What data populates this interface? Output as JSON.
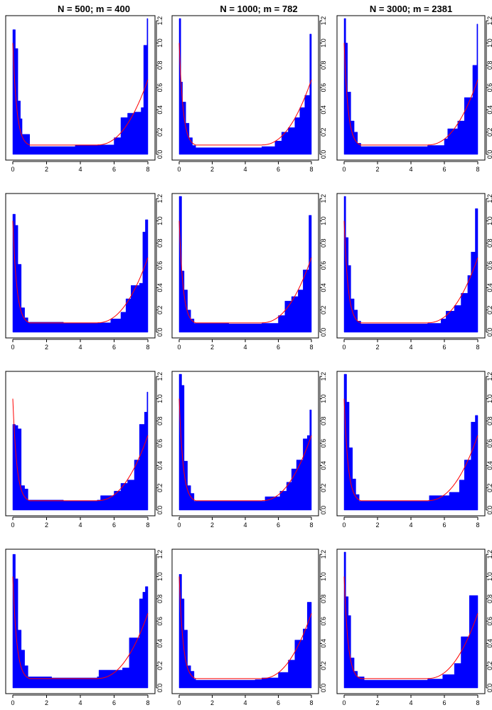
{
  "colors": {
    "hist": "#0000ff",
    "curve": "#ff0000",
    "axis": "#000000",
    "frame": "#000000"
  },
  "columns": [
    {
      "title": "N = 500; m = 400"
    },
    {
      "title": "N = 1000; m = 782"
    },
    {
      "title": "N = 3000; m = 2381"
    }
  ],
  "x_ticks": [
    0,
    2,
    4,
    6,
    8
  ],
  "y_ticks": [
    0.0,
    0.2,
    0.4,
    0.6,
    0.8,
    1.0,
    1.2
  ],
  "y_tick_labels": [
    "0.0",
    "0.2",
    "0.4",
    "0.6",
    "0.8",
    "1.0",
    "1.2"
  ],
  "x_tick_labels": [
    "0",
    "2",
    "4",
    "6",
    "8"
  ],
  "chart_data": [
    {
      "type": "area",
      "panel": "r1c1",
      "xlim": [
        0,
        8
      ],
      "ylim": [
        0,
        1.22
      ],
      "curve": "density",
      "steps": [
        [
          0,
          1.12
        ],
        [
          0.15,
          0.95
        ],
        [
          0.3,
          0.48
        ],
        [
          0.45,
          0.32
        ],
        [
          0.55,
          0.18
        ],
        [
          1.0,
          0.07
        ],
        [
          3.7,
          0.085
        ],
        [
          5.2,
          0.085
        ],
        [
          6.0,
          0.15
        ],
        [
          6.4,
          0.33
        ],
        [
          6.8,
          0.37
        ],
        [
          7.2,
          0.38
        ],
        [
          7.6,
          0.42
        ],
        [
          7.75,
          0.98
        ],
        [
          7.95,
          1.22
        ],
        [
          8.0,
          1.22
        ]
      ]
    },
    {
      "type": "area",
      "panel": "r1c2",
      "xlim": [
        0,
        8
      ],
      "ylim": [
        0,
        1.22
      ],
      "curve": "density",
      "steps": [
        [
          0,
          1.22
        ],
        [
          0.1,
          0.65
        ],
        [
          0.2,
          0.47
        ],
        [
          0.4,
          0.28
        ],
        [
          0.6,
          0.15
        ],
        [
          0.8,
          0.08
        ],
        [
          1.0,
          0.06
        ],
        [
          5.0,
          0.07
        ],
        [
          5.8,
          0.12
        ],
        [
          6.2,
          0.2
        ],
        [
          6.6,
          0.24
        ],
        [
          7.0,
          0.33
        ],
        [
          7.3,
          0.42
        ],
        [
          7.6,
          0.53
        ],
        [
          7.9,
          1.08
        ],
        [
          8.0,
          1.08
        ]
      ]
    },
    {
      "type": "area",
      "panel": "r1c3",
      "xlim": [
        0,
        8
      ],
      "ylim": [
        0,
        1.22
      ],
      "curve": "density",
      "steps": [
        [
          0,
          1.22
        ],
        [
          0.1,
          1.0
        ],
        [
          0.2,
          0.56
        ],
        [
          0.4,
          0.3
        ],
        [
          0.6,
          0.2
        ],
        [
          0.8,
          0.1
        ],
        [
          1.0,
          0.07
        ],
        [
          5.0,
          0.08
        ],
        [
          6.0,
          0.14
        ],
        [
          6.2,
          0.23
        ],
        [
          6.8,
          0.3
        ],
        [
          7.2,
          0.51
        ],
        [
          7.7,
          0.8
        ],
        [
          7.95,
          1.17
        ],
        [
          8.0,
          1.17
        ]
      ]
    },
    {
      "type": "area",
      "panel": "r2c1",
      "xlim": [
        0,
        8
      ],
      "ylim": [
        0,
        1.22
      ],
      "curve": "density",
      "steps": [
        [
          0,
          1.06
        ],
        [
          0.15,
          0.96
        ],
        [
          0.3,
          0.61
        ],
        [
          0.5,
          0.22
        ],
        [
          0.7,
          0.13
        ],
        [
          0.9,
          0.09
        ],
        [
          3.0,
          0.085
        ],
        [
          5.0,
          0.085
        ],
        [
          5.8,
          0.12
        ],
        [
          6.4,
          0.18
        ],
        [
          6.7,
          0.3
        ],
        [
          7.0,
          0.42
        ],
        [
          7.5,
          0.44
        ],
        [
          7.7,
          0.9
        ],
        [
          7.85,
          1.01
        ],
        [
          8.0,
          1.01
        ]
      ]
    },
    {
      "type": "area",
      "panel": "r2c2",
      "xlim": [
        0,
        8
      ],
      "ylim": [
        0,
        1.22
      ],
      "curve": "density",
      "steps": [
        [
          0,
          1.22
        ],
        [
          0.15,
          0.55
        ],
        [
          0.3,
          0.38
        ],
        [
          0.5,
          0.2
        ],
        [
          0.7,
          0.12
        ],
        [
          0.9,
          0.08
        ],
        [
          3.0,
          0.075
        ],
        [
          5.0,
          0.08
        ],
        [
          6.0,
          0.15
        ],
        [
          6.4,
          0.28
        ],
        [
          6.8,
          0.32
        ],
        [
          7.2,
          0.38
        ],
        [
          7.5,
          0.56
        ],
        [
          7.85,
          1.05
        ],
        [
          8.0,
          1.05
        ]
      ]
    },
    {
      "type": "area",
      "panel": "r2c3",
      "xlim": [
        0,
        8
      ],
      "ylim": [
        0,
        1.22
      ],
      "curve": "density",
      "steps": [
        [
          0,
          1.22
        ],
        [
          0.1,
          0.85
        ],
        [
          0.25,
          0.6
        ],
        [
          0.4,
          0.3
        ],
        [
          0.6,
          0.2
        ],
        [
          0.8,
          0.1
        ],
        [
          1.0,
          0.075
        ],
        [
          5.0,
          0.08
        ],
        [
          5.8,
          0.12
        ],
        [
          6.1,
          0.19
        ],
        [
          6.6,
          0.24
        ],
        [
          7.0,
          0.35
        ],
        [
          7.4,
          0.51
        ],
        [
          7.6,
          0.72
        ],
        [
          7.85,
          1.11
        ],
        [
          8.0,
          1.11
        ]
      ]
    },
    {
      "type": "area",
      "panel": "r3c1",
      "xlim": [
        0,
        8
      ],
      "ylim": [
        0,
        1.22
      ],
      "curve": "density",
      "steps": [
        [
          0,
          0.77
        ],
        [
          0.15,
          0.76
        ],
        [
          0.3,
          0.73
        ],
        [
          0.5,
          0.22
        ],
        [
          0.7,
          0.19
        ],
        [
          0.9,
          0.09
        ],
        [
          3.0,
          0.085
        ],
        [
          5.0,
          0.09
        ],
        [
          5.2,
          0.13
        ],
        [
          6.0,
          0.17
        ],
        [
          6.4,
          0.24
        ],
        [
          6.8,
          0.27
        ],
        [
          7.2,
          0.45
        ],
        [
          7.5,
          0.77
        ],
        [
          7.8,
          0.88
        ],
        [
          7.95,
          1.06
        ],
        [
          8.0,
          1.06
        ]
      ]
    },
    {
      "type": "area",
      "panel": "r3c2",
      "xlim": [
        0,
        8
      ],
      "ylim": [
        0,
        1.22
      ],
      "curve": "density",
      "steps": [
        [
          0,
          1.22
        ],
        [
          0.15,
          1.12
        ],
        [
          0.3,
          0.44
        ],
        [
          0.5,
          0.22
        ],
        [
          0.7,
          0.15
        ],
        [
          0.9,
          0.08
        ],
        [
          5.0,
          0.08
        ],
        [
          5.2,
          0.12
        ],
        [
          6.1,
          0.17
        ],
        [
          6.5,
          0.25
        ],
        [
          6.8,
          0.37
        ],
        [
          7.1,
          0.45
        ],
        [
          7.5,
          0.64
        ],
        [
          7.75,
          0.67
        ],
        [
          7.9,
          0.9
        ],
        [
          8.0,
          0.9
        ]
      ]
    },
    {
      "type": "area",
      "panel": "r3c3",
      "xlim": [
        0,
        8
      ],
      "ylim": [
        0,
        1.22
      ],
      "curve": "density",
      "steps": [
        [
          0,
          1.22
        ],
        [
          0.15,
          0.97
        ],
        [
          0.3,
          0.56
        ],
        [
          0.5,
          0.28
        ],
        [
          0.7,
          0.14
        ],
        [
          0.9,
          0.08
        ],
        [
          5.0,
          0.08
        ],
        [
          5.1,
          0.13
        ],
        [
          6.3,
          0.16
        ],
        [
          6.9,
          0.27
        ],
        [
          7.2,
          0.45
        ],
        [
          7.6,
          0.79
        ],
        [
          7.85,
          0.85
        ],
        [
          8.0,
          0.85
        ]
      ]
    },
    {
      "type": "area",
      "panel": "r4c1",
      "xlim": [
        0,
        8
      ],
      "ylim": [
        0,
        1.22
      ],
      "curve": "density",
      "steps": [
        [
          0,
          1.2
        ],
        [
          0.15,
          0.98
        ],
        [
          0.3,
          0.52
        ],
        [
          0.5,
          0.34
        ],
        [
          0.7,
          0.2
        ],
        [
          0.9,
          0.1
        ],
        [
          2.3,
          0.09
        ],
        [
          5.0,
          0.1
        ],
        [
          5.1,
          0.16
        ],
        [
          6.5,
          0.18
        ],
        [
          6.9,
          0.45
        ],
        [
          7.5,
          0.8
        ],
        [
          7.7,
          0.86
        ],
        [
          7.85,
          0.91
        ],
        [
          8.0,
          0.91
        ]
      ]
    },
    {
      "type": "area",
      "panel": "r4c2",
      "xlim": [
        0,
        8
      ],
      "ylim": [
        0,
        1.22
      ],
      "curve": "density",
      "steps": [
        [
          0,
          1.02
        ],
        [
          0.15,
          0.8
        ],
        [
          0.3,
          0.52
        ],
        [
          0.5,
          0.2
        ],
        [
          0.7,
          0.15
        ],
        [
          0.9,
          0.08
        ],
        [
          1.0,
          0.07
        ],
        [
          4.6,
          0.075
        ],
        [
          5.0,
          0.09
        ],
        [
          6.0,
          0.14
        ],
        [
          6.6,
          0.25
        ],
        [
          7.0,
          0.43
        ],
        [
          7.5,
          0.53
        ],
        [
          7.75,
          0.77
        ],
        [
          8.0,
          0.77
        ]
      ]
    },
    {
      "type": "area",
      "panel": "r4c3",
      "xlim": [
        0,
        8
      ],
      "ylim": [
        0,
        1.22
      ],
      "curve": "density",
      "steps": [
        [
          0,
          1.22
        ],
        [
          0.1,
          0.82
        ],
        [
          0.25,
          0.65
        ],
        [
          0.4,
          0.27
        ],
        [
          0.6,
          0.15
        ],
        [
          0.8,
          0.1
        ],
        [
          1.2,
          0.07
        ],
        [
          5.0,
          0.08
        ],
        [
          5.9,
          0.12
        ],
        [
          6.6,
          0.22
        ],
        [
          7.0,
          0.46
        ],
        [
          7.5,
          0.83
        ],
        [
          7.8,
          0.83
        ],
        [
          8.0,
          0.83
        ]
      ]
    }
  ]
}
